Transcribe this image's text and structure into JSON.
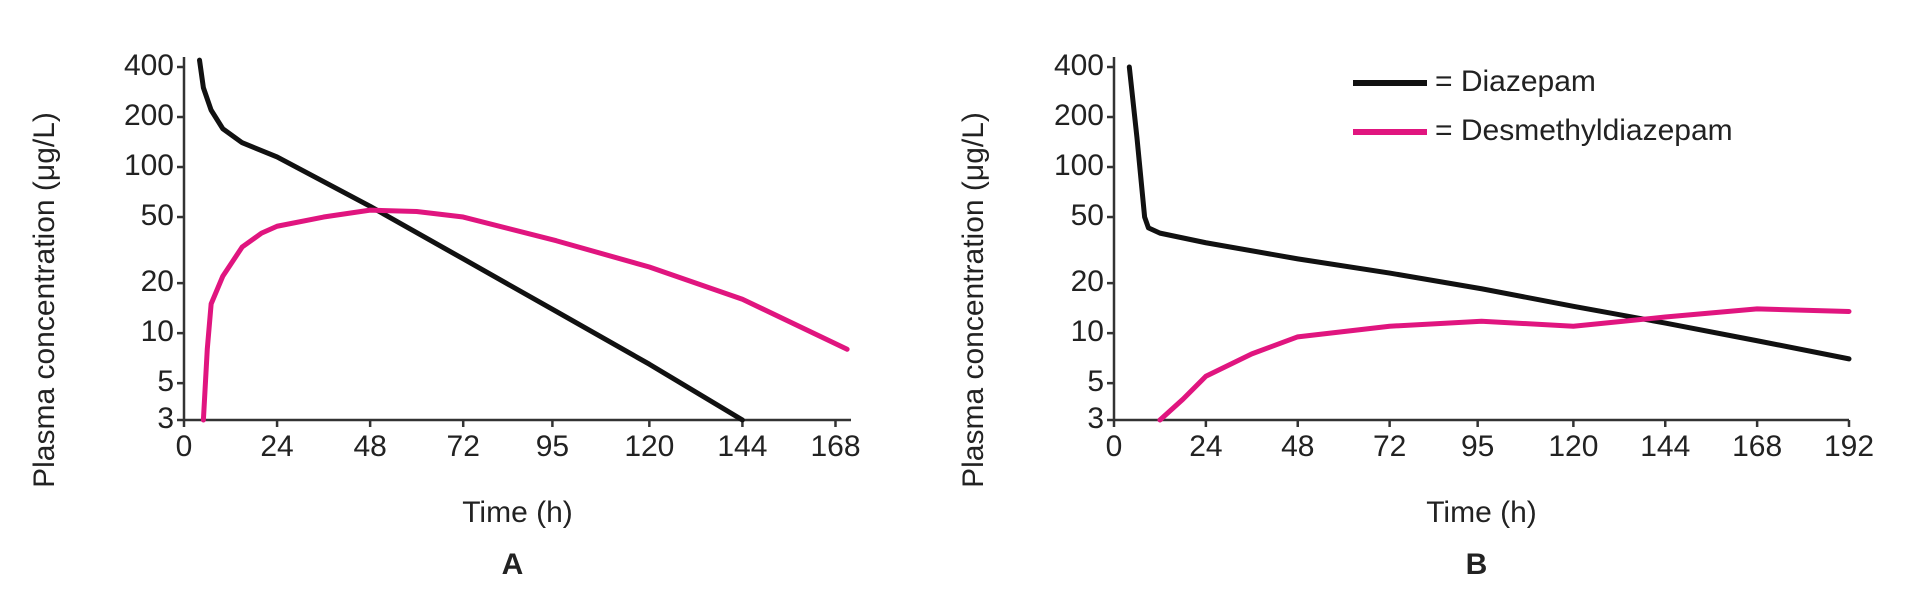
{
  "chart_data": [
    {
      "type": "line",
      "panel_label": "A",
      "x_label": "Time (h)",
      "y_label": "Plasma concentration (μg/L)",
      "yscale": "log",
      "xlim": [
        0,
        172
      ],
      "ylim": [
        3,
        400
      ],
      "xticks": [
        0,
        24,
        48,
        72,
        95,
        120,
        144,
        168
      ],
      "yticks": [
        3,
        5,
        10,
        20,
        50,
        100,
        200,
        400
      ],
      "legend": false,
      "series": [
        {
          "color": "#111111",
          "x": [
            4,
            5,
            7,
            10,
            15,
            24,
            48,
            72,
            96,
            120,
            144
          ],
          "values": [
            440,
            300,
            220,
            170,
            140,
            115,
            58,
            28,
            13.5,
            6.5,
            3
          ]
        },
        {
          "color": "#e0157f",
          "x": [
            5,
            6,
            7,
            10,
            15,
            20,
            24,
            36,
            48,
            60,
            72,
            96,
            120,
            144,
            171
          ],
          "values": [
            3,
            8,
            15,
            22,
            33,
            40,
            44,
            50,
            55,
            54,
            50,
            36,
            25,
            16,
            8
          ]
        }
      ]
    },
    {
      "type": "line",
      "panel_label": "B",
      "x_label": "Time (h)",
      "y_label": "Plasma concentration (μg/L)",
      "yscale": "log",
      "xlim": [
        0,
        192
      ],
      "ylim": [
        3,
        400
      ],
      "xticks": [
        0,
        24,
        48,
        72,
        95,
        120,
        144,
        168,
        192
      ],
      "yticks": [
        3,
        5,
        10,
        20,
        50,
        100,
        200,
        400
      ],
      "legend": true,
      "series": [
        {
          "name": "= Diazepam",
          "color": "#111111",
          "x": [
            4,
            6,
            8,
            9,
            12,
            24,
            48,
            72,
            96,
            120,
            144,
            168,
            192
          ],
          "values": [
            400,
            150,
            50,
            43,
            40,
            35,
            28,
            23,
            18.5,
            14.5,
            11.5,
            9,
            7
          ]
        },
        {
          "name": "= Desmethyldiazepam",
          "color": "#e0157f",
          "x": [
            12,
            18,
            24,
            36,
            48,
            72,
            96,
            120,
            144,
            168,
            192
          ],
          "values": [
            3,
            4,
            5.5,
            7.5,
            9.5,
            11,
            11.8,
            11,
            12.5,
            14,
            13.5
          ]
        }
      ]
    }
  ]
}
